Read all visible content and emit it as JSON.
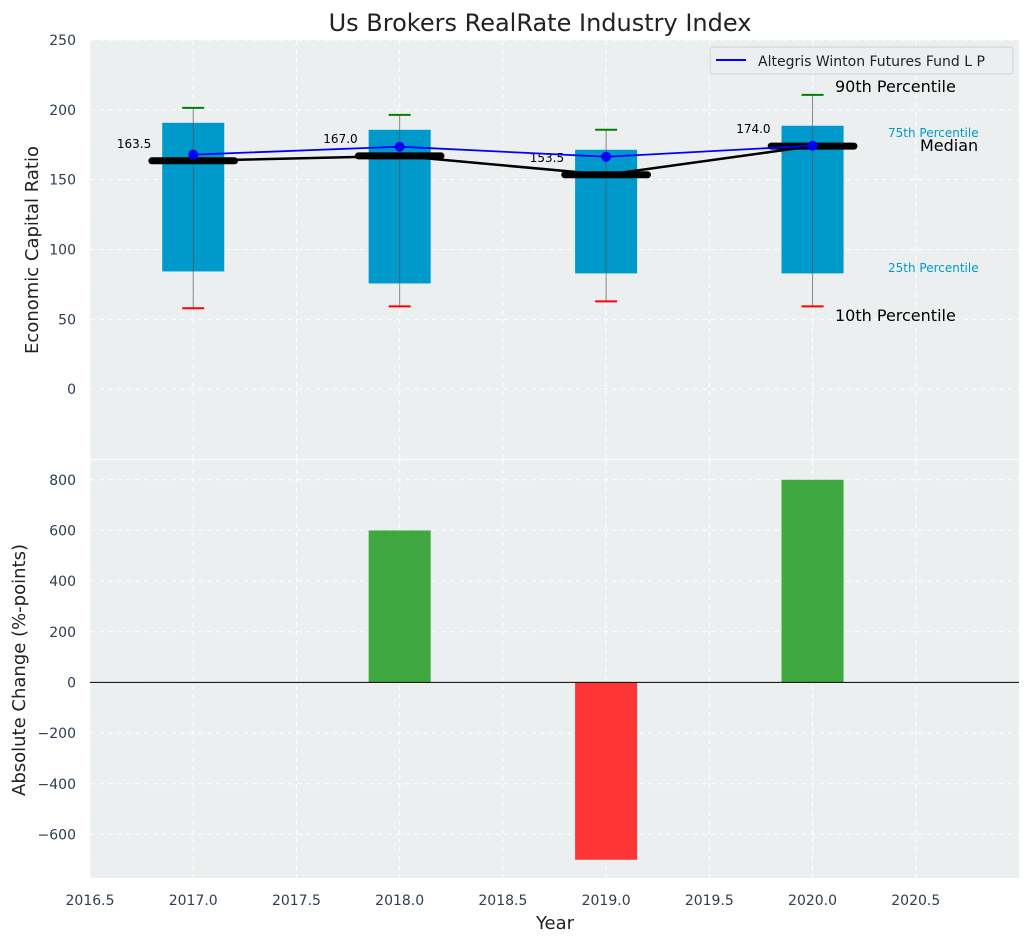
{
  "colors": {
    "plot_bg": "#eceff0",
    "box": "#0099cc",
    "fund_line": "#0000ff",
    "median_line": "#000000",
    "p90": "#008000",
    "p10": "#ff0000",
    "increase": "#2ca02c",
    "decrease": "#ff2020",
    "tick_text": "#2e3d50",
    "percentile_label": "#0099cc"
  },
  "chart_data": [
    {
      "type": "box-range",
      "title": "Us Brokers RealRate Industry Index",
      "xlabel": "",
      "ylabel": "Economic Capital Ratio",
      "xlim": [
        2016.5,
        2021.0
      ],
      "ylim": [
        -50,
        250
      ],
      "grid": true,
      "x": [
        2017,
        2018,
        2019,
        2020
      ],
      "p90": [
        201.4,
        196.4,
        185.7,
        210.7
      ],
      "p75": [
        190.7,
        185.7,
        171.4,
        188.6
      ],
      "median": [
        163.5,
        167.0,
        153.5,
        174.0
      ],
      "p25": [
        84.3,
        75.7,
        82.9,
        82.9
      ],
      "p10": [
        57.9,
        59.3,
        62.9,
        59.3
      ],
      "median_labels": [
        "163.5",
        "167.0",
        "153.5",
        "174.0"
      ],
      "series": [
        {
          "name": "Altegris Winton Futures Fund L P",
          "values": [
            167.9,
            173.6,
            166.4,
            174.3
          ]
        }
      ],
      "legend": {
        "placement": "top-right",
        "entries": [
          "Altegris Winton Futures Fund L P"
        ]
      },
      "yticks": [
        "0",
        "50",
        "100",
        "150",
        "200",
        "250"
      ],
      "ytick_values": [
        0,
        50,
        100,
        150,
        200,
        250
      ],
      "annotations": {
        "p90": "90th Percentile",
        "p75": "75th Percentile",
        "median": "Median",
        "p25": "25th Percentile",
        "p10": "10th Percentile"
      }
    },
    {
      "type": "bar",
      "xlabel": "Year",
      "ylabel": "Absolute Change (%-points)",
      "xlim": [
        2016.5,
        2021.0
      ],
      "ylim": [
        -772,
        878
      ],
      "grid": true,
      "x": [
        2017,
        2018,
        2019,
        2020
      ],
      "values": [
        0,
        600,
        -700,
        800
      ],
      "yticks": [
        "−600",
        "−400",
        "−200",
        "0",
        "200",
        "400",
        "600",
        "800"
      ],
      "ytick_values": [
        -600,
        -400,
        -200,
        0,
        200,
        400,
        600,
        800
      ],
      "xticks": [
        "2016.5",
        "2017.0",
        "2017.5",
        "2018.0",
        "2018.5",
        "2019.0",
        "2019.5",
        "2020.0",
        "2020.5"
      ],
      "xtick_values": [
        2016.5,
        2017.0,
        2017.5,
        2018.0,
        2018.5,
        2019.0,
        2019.5,
        2020.0,
        2020.5
      ]
    }
  ]
}
